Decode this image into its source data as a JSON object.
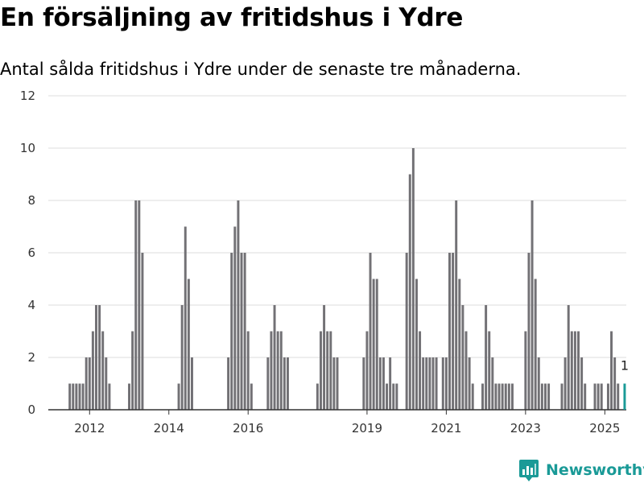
{
  "header": {
    "title": "En försäljning av fritidshus i Ydre",
    "subtitle": "Antal sålda fritidshus i Ydre under de senaste tre månaderna."
  },
  "brand": {
    "name": "Newsworthy",
    "color": "#1a9a97"
  },
  "colors": {
    "bar": "#727175",
    "highlight": "#1a9a97",
    "grid": "#dddddd",
    "axis": "#333333"
  },
  "chart_data": {
    "type": "bar",
    "title": "En försäljning av fritidshus i Ydre",
    "subtitle": "Antal sålda fritidshus i Ydre under de senaste tre månaderna.",
    "xlabel": "",
    "ylabel": "",
    "ylim": [
      0,
      12
    ],
    "yticks": [
      0,
      2,
      4,
      6,
      8,
      10,
      12
    ],
    "xticks": [
      "2012",
      "2014",
      "2016",
      "2019",
      "2021",
      "2023",
      "2025"
    ],
    "grid": true,
    "legend": "none",
    "x_start": "2011-01",
    "x_end": "2025-07",
    "series": [
      {
        "values": [
          {
            "x": "2011-07",
            "y": 1
          },
          {
            "x": "2011-08",
            "y": 1
          },
          {
            "x": "2011-09",
            "y": 1
          },
          {
            "x": "2011-10",
            "y": 1
          },
          {
            "x": "2011-11",
            "y": 1
          },
          {
            "x": "2011-12",
            "y": 2
          },
          {
            "x": "2012-01",
            "y": 2
          },
          {
            "x": "2012-02",
            "y": 3
          },
          {
            "x": "2012-03",
            "y": 4
          },
          {
            "x": "2012-04",
            "y": 4
          },
          {
            "x": "2012-05",
            "y": 3
          },
          {
            "x": "2012-06",
            "y": 2
          },
          {
            "x": "2012-07",
            "y": 1
          },
          {
            "x": "2013-01",
            "y": 1
          },
          {
            "x": "2013-02",
            "y": 3
          },
          {
            "x": "2013-03",
            "y": 8
          },
          {
            "x": "2013-04",
            "y": 8
          },
          {
            "x": "2013-05",
            "y": 6
          },
          {
            "x": "2014-04",
            "y": 1
          },
          {
            "x": "2014-05",
            "y": 4
          },
          {
            "x": "2014-06",
            "y": 7
          },
          {
            "x": "2014-07",
            "y": 5
          },
          {
            "x": "2014-08",
            "y": 2
          },
          {
            "x": "2015-07",
            "y": 2
          },
          {
            "x": "2015-08",
            "y": 6
          },
          {
            "x": "2015-09",
            "y": 7
          },
          {
            "x": "2015-10",
            "y": 8
          },
          {
            "x": "2015-11",
            "y": 6
          },
          {
            "x": "2015-12",
            "y": 6
          },
          {
            "x": "2016-01",
            "y": 3
          },
          {
            "x": "2016-02",
            "y": 1
          },
          {
            "x": "2016-07",
            "y": 2
          },
          {
            "x": "2016-08",
            "y": 3
          },
          {
            "x": "2016-09",
            "y": 4
          },
          {
            "x": "2016-10",
            "y": 3
          },
          {
            "x": "2016-11",
            "y": 3
          },
          {
            "x": "2016-12",
            "y": 2
          },
          {
            "x": "2017-01",
            "y": 2
          },
          {
            "x": "2017-10",
            "y": 1
          },
          {
            "x": "2017-11",
            "y": 3
          },
          {
            "x": "2017-12",
            "y": 4
          },
          {
            "x": "2018-01",
            "y": 3
          },
          {
            "x": "2018-02",
            "y": 3
          },
          {
            "x": "2018-03",
            "y": 2
          },
          {
            "x": "2018-04",
            "y": 2
          },
          {
            "x": "2018-12",
            "y": 2
          },
          {
            "x": "2019-01",
            "y": 3
          },
          {
            "x": "2019-02",
            "y": 6
          },
          {
            "x": "2019-03",
            "y": 5
          },
          {
            "x": "2019-04",
            "y": 5
          },
          {
            "x": "2019-05",
            "y": 2
          },
          {
            "x": "2019-06",
            "y": 2
          },
          {
            "x": "2019-07",
            "y": 1
          },
          {
            "x": "2019-08",
            "y": 2
          },
          {
            "x": "2019-09",
            "y": 1
          },
          {
            "x": "2019-10",
            "y": 1
          },
          {
            "x": "2020-01",
            "y": 6
          },
          {
            "x": "2020-02",
            "y": 9
          },
          {
            "x": "2020-03",
            "y": 10
          },
          {
            "x": "2020-04",
            "y": 5
          },
          {
            "x": "2020-05",
            "y": 3
          },
          {
            "x": "2020-06",
            "y": 2
          },
          {
            "x": "2020-07",
            "y": 2
          },
          {
            "x": "2020-08",
            "y": 2
          },
          {
            "x": "2020-09",
            "y": 2
          },
          {
            "x": "2020-10",
            "y": 2
          },
          {
            "x": "2020-12",
            "y": 2
          },
          {
            "x": "2021-01",
            "y": 2
          },
          {
            "x": "2021-02",
            "y": 6
          },
          {
            "x": "2021-03",
            "y": 6
          },
          {
            "x": "2021-04",
            "y": 8
          },
          {
            "x": "2021-05",
            "y": 5
          },
          {
            "x": "2021-06",
            "y": 4
          },
          {
            "x": "2021-07",
            "y": 3
          },
          {
            "x": "2021-08",
            "y": 2
          },
          {
            "x": "2021-09",
            "y": 1
          },
          {
            "x": "2021-12",
            "y": 1
          },
          {
            "x": "2022-01",
            "y": 4
          },
          {
            "x": "2022-02",
            "y": 3
          },
          {
            "x": "2022-03",
            "y": 2
          },
          {
            "x": "2022-04",
            "y": 1
          },
          {
            "x": "2022-05",
            "y": 1
          },
          {
            "x": "2022-06",
            "y": 1
          },
          {
            "x": "2022-07",
            "y": 1
          },
          {
            "x": "2022-08",
            "y": 1
          },
          {
            "x": "2022-09",
            "y": 1
          },
          {
            "x": "2023-01",
            "y": 3
          },
          {
            "x": "2023-02",
            "y": 6
          },
          {
            "x": "2023-03",
            "y": 8
          },
          {
            "x": "2023-04",
            "y": 5
          },
          {
            "x": "2023-05",
            "y": 2
          },
          {
            "x": "2023-06",
            "y": 1
          },
          {
            "x": "2023-07",
            "y": 1
          },
          {
            "x": "2023-08",
            "y": 1
          },
          {
            "x": "2023-12",
            "y": 1
          },
          {
            "x": "2024-01",
            "y": 2
          },
          {
            "x": "2024-02",
            "y": 4
          },
          {
            "x": "2024-03",
            "y": 3
          },
          {
            "x": "2024-04",
            "y": 3
          },
          {
            "x": "2024-05",
            "y": 3
          },
          {
            "x": "2024-06",
            "y": 2
          },
          {
            "x": "2024-07",
            "y": 1
          },
          {
            "x": "2024-10",
            "y": 1
          },
          {
            "x": "2024-11",
            "y": 1
          },
          {
            "x": "2024-12",
            "y": 1
          },
          {
            "x": "2025-02",
            "y": 1
          },
          {
            "x": "2025-03",
            "y": 3
          },
          {
            "x": "2025-04",
            "y": 2
          },
          {
            "x": "2025-05",
            "y": 1
          }
        ]
      }
    ],
    "highlight": {
      "x": "2025-07",
      "y": 1,
      "label": "1"
    }
  }
}
